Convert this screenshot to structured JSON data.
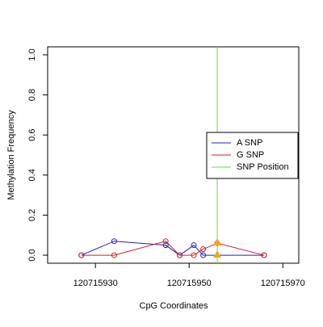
{
  "chart_data": {
    "type": "line",
    "xlabel": "CpG Coordinates",
    "ylabel": "Methylation Frequency",
    "xlim": [
      120715919.8,
      120715973.4
    ],
    "xticks": [
      120715930,
      120715950,
      120715970
    ],
    "ylim": [
      -0.04,
      1.04
    ],
    "yticks": [
      {
        "value": 0,
        "label": "0.0"
      },
      0.2,
      0.4,
      0.6,
      0.8,
      {
        "value": 1,
        "label": "1.0"
      }
    ],
    "series": [
      {
        "name": "A SNP",
        "color": "#2020c0",
        "x": [
          120715927,
          120715934,
          120715945,
          120715948,
          120715951,
          120715953,
          120715966
        ],
        "values": [
          0,
          0.07,
          0.05,
          0,
          0.05,
          0,
          0
        ]
      },
      {
        "name": "G SNP",
        "color": "#d02020",
        "x": [
          120715927,
          120715934,
          120715945,
          120715948,
          120715951,
          120715953,
          120715956,
          120715966
        ],
        "values": [
          0,
          0,
          0.07,
          0,
          0,
          0.03,
          0.06,
          0
        ]
      }
    ],
    "snp": {
      "name": "SNP Position",
      "color": "#66dd44",
      "x": 120715956,
      "marker_color": "#f0a820",
      "marker_values": [
        0.06,
        0
      ]
    },
    "legend": "right"
  }
}
